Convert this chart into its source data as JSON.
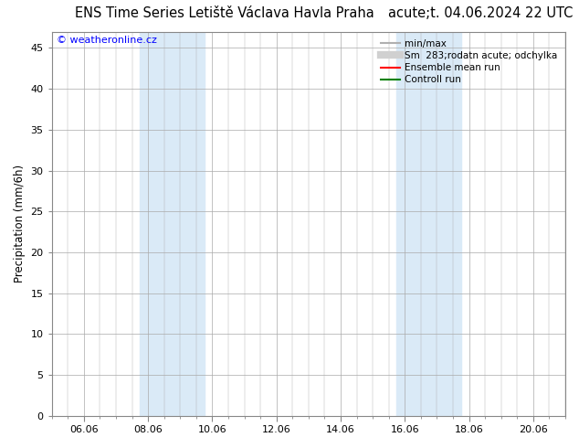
{
  "title_left": "ENS Time Series Letiště Václava Havla Praha",
  "title_right": "acute;t. 04.06.2024 22 UTC",
  "ylabel": "Precipitation (mm/6h)",
  "watermark": "© weatheronline.cz",
  "ylim": [
    0,
    47
  ],
  "yticks": [
    0,
    5,
    10,
    15,
    20,
    25,
    30,
    35,
    40,
    45
  ],
  "xtick_labels": [
    "06.06",
    "08.06",
    "10.06",
    "12.06",
    "14.06",
    "16.06",
    "18.06",
    "20.06"
  ],
  "xtick_positions": [
    1.0,
    3.0,
    5.0,
    7.0,
    9.0,
    11.0,
    13.0,
    15.0
  ],
  "xlim": [
    0,
    16
  ],
  "shaded_regions": [
    {
      "xmin": 2.75,
      "xmax": 4.75,
      "color": "#daeaf7"
    },
    {
      "xmin": 10.75,
      "xmax": 12.75,
      "color": "#daeaf7"
    }
  ],
  "legend_entries": [
    {
      "label": "min/max",
      "color": "#b0b0b0",
      "linewidth": 1.5
    },
    {
      "label": "Sm  283;rodatn acute; odchylka",
      "color": "#d0d0d0",
      "linewidth": 6
    },
    {
      "label": "Ensemble mean run",
      "color": "red",
      "linewidth": 1.5
    },
    {
      "label": "Controll run",
      "color": "green",
      "linewidth": 1.5
    }
  ],
  "background_color": "#ffffff",
  "plot_bg_color": "#ffffff",
  "border_color": "#888888",
  "grid_color": "#aaaaaa",
  "title_fontsize": 10.5,
  "ylabel_fontsize": 8.5,
  "tick_fontsize": 8,
  "watermark_fontsize": 8,
  "legend_fontsize": 7.5
}
